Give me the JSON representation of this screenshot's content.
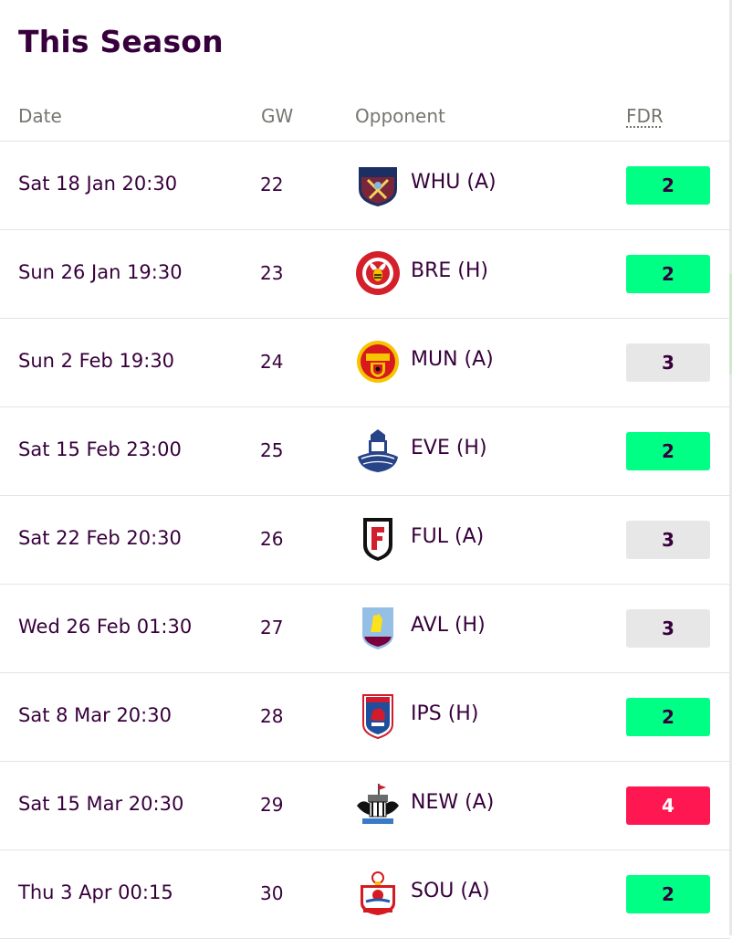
{
  "title": "This Season",
  "columns": {
    "date": "Date",
    "gw": "GW",
    "opponent": "Opponent",
    "fdr": "FDR"
  },
  "fixtures": [
    {
      "date": "Sat 18 Jan 20:30",
      "gw": "22",
      "opponent": "WHU (A)",
      "fdr": "2",
      "crest": "west-ham-crest-icon"
    },
    {
      "date": "Sun 26 Jan 19:30",
      "gw": "23",
      "opponent": "BRE (H)",
      "fdr": "2",
      "crest": "brentford-crest-icon"
    },
    {
      "date": "Sun 2 Feb 19:30",
      "gw": "24",
      "opponent": "MUN (A)",
      "fdr": "3",
      "crest": "man-utd-crest-icon"
    },
    {
      "date": "Sat 15 Feb 23:00",
      "gw": "25",
      "opponent": "EVE (H)",
      "fdr": "2",
      "crest": "everton-crest-icon"
    },
    {
      "date": "Sat 22 Feb 20:30",
      "gw": "26",
      "opponent": "FUL (A)",
      "fdr": "3",
      "crest": "fulham-crest-icon"
    },
    {
      "date": "Wed 26 Feb 01:30",
      "gw": "27",
      "opponent": "AVL (H)",
      "fdr": "3",
      "crest": "aston-villa-crest-icon"
    },
    {
      "date": "Sat 8 Mar 20:30",
      "gw": "28",
      "opponent": "IPS (H)",
      "fdr": "2",
      "crest": "ipswich-crest-icon"
    },
    {
      "date": "Sat 15 Mar 20:30",
      "gw": "29",
      "opponent": "NEW (A)",
      "fdr": "4",
      "crest": "newcastle-crest-icon"
    },
    {
      "date": "Thu 3 Apr 00:15",
      "gw": "30",
      "opponent": "SOU (A)",
      "fdr": "2",
      "crest": "southampton-crest-icon"
    }
  ],
  "fdr_colors": {
    "2": "#00ff85",
    "3": "#e7e7e7",
    "4": "#ff1751"
  },
  "text_color": "#37003c"
}
